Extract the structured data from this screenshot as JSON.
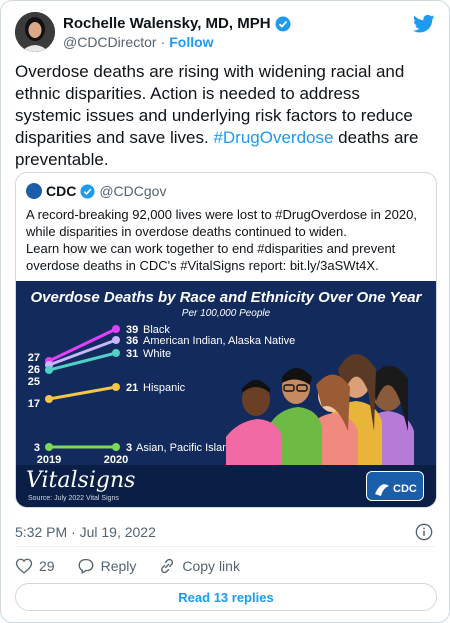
{
  "author": {
    "name": "Rochelle Walensky, MD, MPH",
    "handle": "@CDCDirector",
    "separator": "·",
    "follow_label": "Follow"
  },
  "tweet": {
    "text_before": "Overdose deaths are rising with widening racial and\nethnic disparities. Action is needed to address\nsystemic issues and underlying risk factors to reduce\ndisparities and save lives. ",
    "hashtag": "#DrugOverdose",
    "text_after": " deaths are\npreventable."
  },
  "quote": {
    "name": "CDC",
    "handle": "@CDCgov",
    "text": "A record-breaking 92,000 lives were lost to #DrugOverdose in 2020,\nwhile disparities in overdose deaths continued to widen.\nLearn how we can work together to end #disparities and prevent\noverdose deaths in CDC's #VitalSigns report: bit.ly/3aSWt4X.",
    "infographic": {
      "title": "Overdose Deaths by Race and Ethnicity Over One Year",
      "subtitle": "Per 100,000 People",
      "brand": "Vitalsigns",
      "source": "Source: July 2022 Vital Signs",
      "badge": "CDC",
      "x_labels": [
        "2019",
        "2020"
      ],
      "left_ticks": [
        "27",
        "26",
        "25",
        "17",
        "3"
      ],
      "series_labels": [
        {
          "value": "39",
          "name": "Black",
          "color": "#e040fb"
        },
        {
          "value": "36",
          "name": "American Indian, Alaska Native",
          "color": "#c7b6ff"
        },
        {
          "value": "31",
          "name": "White",
          "color": "#4fd1c5"
        },
        {
          "value": "21",
          "name": "Hispanic",
          "color": "#f6c744"
        },
        {
          "value": "3",
          "name": "Asian, Pacific Islander",
          "color": "#7ed957"
        }
      ]
    }
  },
  "meta": {
    "timestamp": "5:32 PM · Jul 19, 2022"
  },
  "actions": {
    "likes": "29",
    "reply_label": "Reply",
    "copy_label": "Copy link"
  },
  "read_replies_label": "Read 13 replies"
}
